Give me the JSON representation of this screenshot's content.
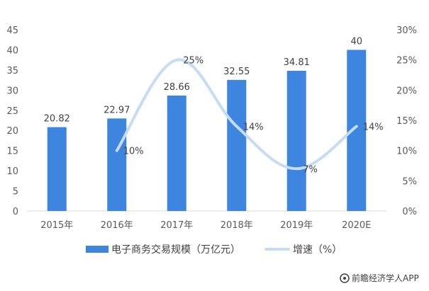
{
  "chart_data": {
    "type": "bar",
    "categories": [
      "2015年",
      "2016年",
      "2017年",
      "2018年",
      "2019年",
      "2020E"
    ],
    "series": [
      {
        "name": "电子商务交易规模（万亿元）",
        "type": "bar",
        "axis": "left",
        "color": "#3e85e0",
        "values": [
          20.82,
          22.97,
          28.66,
          32.55,
          34.81,
          40
        ],
        "labels": [
          "20.82",
          "22.97",
          "28.66",
          "32.55",
          "34.81",
          "40"
        ]
      },
      {
        "name": "增速（%）",
        "type": "line",
        "axis": "right",
        "color": "#c5dcf3",
        "values": [
          null,
          10,
          25,
          14,
          7,
          14
        ],
        "labels": [
          "",
          "10%",
          "25%",
          "14%",
          "7%",
          "14%"
        ]
      }
    ],
    "y_left": {
      "min": 0,
      "max": 45,
      "ticks": [
        "0",
        "5",
        "10",
        "15",
        "20",
        "25",
        "30",
        "35",
        "40",
        "45"
      ]
    },
    "y_right": {
      "min": 0,
      "max": 30,
      "ticks": [
        "0%",
        "5%",
        "10%",
        "15%",
        "20%",
        "25%",
        "30%"
      ]
    },
    "grid": false,
    "legend_position": "bottom"
  },
  "source": "前瞻经济学人APP"
}
